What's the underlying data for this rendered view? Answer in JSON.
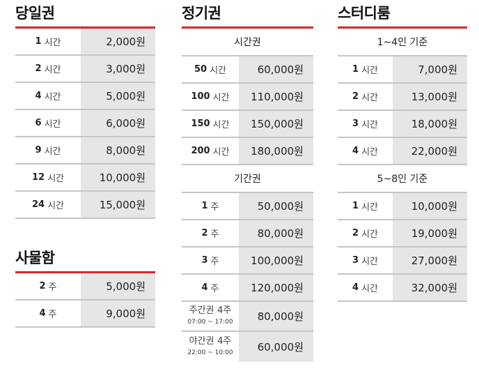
{
  "daily": {
    "title": "당일권",
    "rows": [
      {
        "num": "1",
        "unit": "시간",
        "price": "2,000원"
      },
      {
        "num": "2",
        "unit": "시간",
        "price": "3,000원"
      },
      {
        "num": "4",
        "unit": "시간",
        "price": "5,000원"
      },
      {
        "num": "6",
        "unit": "시간",
        "price": "6,000원"
      },
      {
        "num": "9",
        "unit": "시간",
        "price": "8,000원"
      },
      {
        "num": "12",
        "unit": "시간",
        "price": "10,000원"
      },
      {
        "num": "24",
        "unit": "시간",
        "price": "15,000원"
      }
    ]
  },
  "locker": {
    "title": "사물함",
    "rows": [
      {
        "num": "2",
        "unit": "주",
        "price": "5,000원"
      },
      {
        "num": "4",
        "unit": "주",
        "price": "9,000원"
      }
    ]
  },
  "commuter": {
    "title": "정기권",
    "hours_head": "시간권",
    "hours_rows": [
      {
        "num": "50",
        "unit": "시간",
        "price": "60,000원"
      },
      {
        "num": "100",
        "unit": "시간",
        "price": "110,000원"
      },
      {
        "num": "150",
        "unit": "시간",
        "price": "150,000원"
      },
      {
        "num": "200",
        "unit": "시간",
        "price": "180,000원"
      }
    ],
    "period_head": "기간권",
    "period_rows": [
      {
        "num": "1",
        "unit": "주",
        "price": "50,000원"
      },
      {
        "num": "2",
        "unit": "주",
        "price": "80,000원"
      },
      {
        "num": "3",
        "unit": "주",
        "price": "100,000원"
      },
      {
        "num": "4",
        "unit": "주",
        "price": "120,000원"
      }
    ],
    "day_pass": {
      "name": "주간권",
      "weeks": "4주",
      "hours": "07:00 ~ 17:00",
      "price": "80,000원"
    },
    "night_pass": {
      "name": "야간권",
      "weeks": "4주",
      "hours": "22:00 ~ 10:00",
      "price": "60,000원"
    }
  },
  "study": {
    "title": "스터디룸",
    "small_head": "1~4인 기준",
    "small_rows": [
      {
        "num": "1",
        "unit": "시간",
        "price": "7,000원"
      },
      {
        "num": "2",
        "unit": "시간",
        "price": "13,000원"
      },
      {
        "num": "3",
        "unit": "시간",
        "price": "18,000원"
      },
      {
        "num": "4",
        "unit": "시간",
        "price": "22,000원"
      }
    ],
    "large_head": "5~8인 기준",
    "large_rows": [
      {
        "num": "1",
        "unit": "시간",
        "price": "10,000원"
      },
      {
        "num": "2",
        "unit": "시간",
        "price": "19,000원"
      },
      {
        "num": "3",
        "unit": "시간",
        "price": "27,000원"
      },
      {
        "num": "4",
        "unit": "시간",
        "price": "32,000원"
      }
    ]
  },
  "colors": {
    "accent": "#d9262c",
    "price_bg": "#e6e6e6",
    "divider": "#c5c5c5"
  }
}
